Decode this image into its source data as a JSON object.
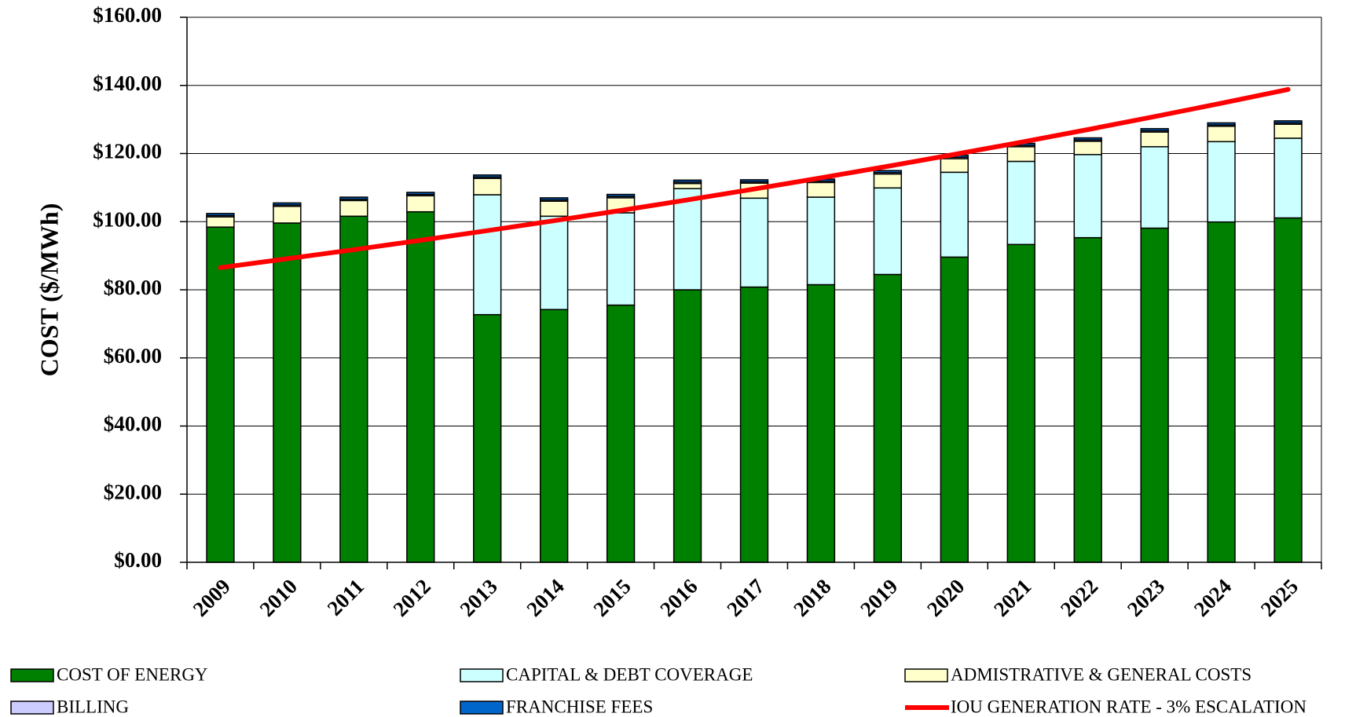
{
  "chart_data": {
    "type": "stacked_bar_line",
    "y_label": "COST ($/MWh)",
    "categories": [
      "2009",
      "2010",
      "2011",
      "2012",
      "2013",
      "2014",
      "2015",
      "2016",
      "2017",
      "2018",
      "2019",
      "2020",
      "2021",
      "2022",
      "2023",
      "2024",
      "2025"
    ],
    "series": [
      {
        "name": "COST OF ENERGY",
        "color": "#008000",
        "values": [
          98.4,
          99.6,
          101.6,
          102.9,
          72.7,
          74.2,
          75.5,
          80.0,
          80.8,
          81.5,
          84.5,
          89.6,
          93.3,
          95.3,
          98.1,
          99.9,
          101.1
        ]
      },
      {
        "name": "CAPITAL & DEBT COVERAGE",
        "color": "#ccffff",
        "values": [
          0,
          0,
          0,
          0,
          35.2,
          27.4,
          27.1,
          29.7,
          26.1,
          25.7,
          25.4,
          24.9,
          24.4,
          24.4,
          23.9,
          23.6,
          23.4
        ]
      },
      {
        "name": "ADMISTRATIVE & GENERAL COSTS",
        "color": "#ffffcc",
        "values": [
          3.0,
          4.9,
          4.6,
          4.7,
          4.8,
          4.4,
          4.4,
          1.5,
          4.4,
          4.3,
          4.1,
          4.0,
          4.3,
          3.9,
          4.3,
          4.5,
          4.1
        ]
      },
      {
        "name": "BILLING",
        "color": "#ccccff",
        "values": [
          0.4,
          0.4,
          0.4,
          0.4,
          0.4,
          0.4,
          0.4,
          0.4,
          0.4,
          0.4,
          0.4,
          0.4,
          0.4,
          0.4,
          0.4,
          0.4,
          0.4
        ]
      },
      {
        "name": "FRANCHISE FEES",
        "color": "#0066cc",
        "values": [
          0.6,
          0.6,
          0.6,
          0.6,
          0.6,
          0.6,
          0.6,
          0.6,
          0.6,
          0.6,
          0.6,
          0.6,
          0.6,
          0.6,
          0.6,
          0.6,
          0.6
        ]
      }
    ],
    "line": {
      "name": "IOU GENERATION RATE - 3% ESCALATION",
      "color": "#ff0000",
      "values": [
        86.5,
        89.1,
        91.77,
        94.52,
        97.36,
        100.28,
        103.29,
        106.39,
        109.58,
        112.86,
        116.25,
        119.74,
        123.33,
        127.03,
        130.84,
        134.77,
        138.81
      ]
    },
    "ylim": [
      0,
      160
    ],
    "yticks": [
      {
        "value": 0,
        "label": "$0.00"
      },
      {
        "value": 20,
        "label": "$20.00"
      },
      {
        "value": 40,
        "label": "$40.00"
      },
      {
        "value": 60,
        "label": "$60.00"
      },
      {
        "value": 80,
        "label": "$80.00"
      },
      {
        "value": 100,
        "label": "$100.00"
      },
      {
        "value": 120,
        "label": "$120.00"
      },
      {
        "value": 140,
        "label": "$140.00"
      },
      {
        "value": 160,
        "label": "$160.00"
      }
    ],
    "grid": true
  }
}
